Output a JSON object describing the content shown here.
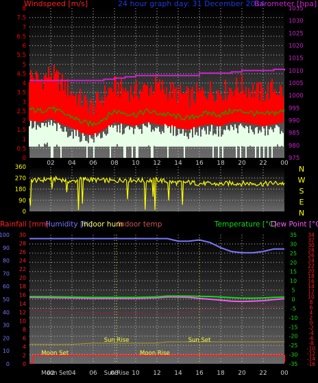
{
  "colors": {
    "background": "#000000",
    "grid": "#c8c8c8",
    "wind_avg": "#00b000",
    "wind_gust": "#ff0000",
    "wind_lull": "#ffffff",
    "barometer": "#cc22cc",
    "direction": "#ffff00",
    "rainfall": "#ff2222",
    "humidity": "#7777ff",
    "indoor_hum": "#ffff66",
    "indoor_temp": "#cc5555",
    "temperature": "#11dd11",
    "dew_point": "#ff55ff",
    "sun_moon": "#ffff44",
    "title": "#1e3cdc"
  },
  "x_ticks": [
    "02",
    "04",
    "06",
    "08",
    "10",
    "12",
    "14",
    "16",
    "18",
    "20",
    "22",
    "00"
  ],
  "chart_data": [
    {
      "type": "line",
      "title": "24 hour graph day: 31 December 2014",
      "y_left_label": "Windspeed [m/s]",
      "y_right_label": "Barometer [hpa]",
      "y_left_ticks": [
        "0",
        "0.5",
        "1",
        "1.5",
        "2",
        "2.5",
        "3",
        "3.5",
        "4",
        "4.5",
        "5",
        "5.5",
        "6",
        "6.5",
        "7",
        "7.5",
        "8"
      ],
      "y_right_ticks": [
        "975",
        "980",
        "985",
        "990",
        "995",
        "1000",
        "1005",
        "1010",
        "1015",
        "1020",
        "1025",
        "1030",
        "1035"
      ],
      "ylim_left": [
        0,
        8
      ],
      "ylim_right": [
        975,
        1035
      ],
      "x_hours": [
        0,
        1,
        2,
        3,
        4,
        5,
        6,
        7,
        8,
        9,
        10,
        11,
        12,
        13,
        14,
        15,
        16,
        17,
        18,
        19,
        20,
        21,
        22,
        23,
        24
      ],
      "series": [
        {
          "key": "gust",
          "values": [
            4.2,
            3.9,
            4.3,
            3.8,
            3.3,
            2.8,
            2.5,
            3.1,
            3.6,
            3.4,
            3.3,
            3.5,
            3.6,
            3.4,
            3.2,
            3.0,
            3.2,
            3.4,
            3.3,
            3.5,
            3.6,
            3.4,
            3.2,
            3.5,
            3.3
          ]
        },
        {
          "key": "average",
          "values": [
            2.6,
            2.5,
            2.7,
            2.4,
            2.2,
            1.9,
            1.8,
            2.1,
            2.5,
            2.4,
            2.3,
            2.5,
            2.4,
            2.3,
            2.2,
            2.1,
            2.3,
            2.4,
            2.3,
            2.5,
            2.5,
            2.4,
            2.3,
            2.4,
            2.5
          ]
        },
        {
          "key": "lull",
          "values": [
            1.8,
            1.6,
            1.8,
            1.5,
            1.3,
            1.1,
            1.0,
            1.3,
            1.6,
            1.5,
            1.5,
            1.6,
            1.6,
            1.5,
            1.4,
            1.3,
            1.4,
            1.5,
            1.4,
            1.6,
            1.6,
            1.5,
            1.4,
            1.5,
            1.6
          ]
        },
        {
          "key": "barometer",
          "values": [
            1006,
            1006,
            1006,
            1006,
            1006,
            1006,
            1006,
            1006.5,
            1007,
            1007.5,
            1008,
            1008,
            1008,
            1008,
            1008,
            1008,
            1009,
            1009,
            1009,
            1009.5,
            1010,
            1010,
            1010,
            1010.5,
            1010
          ]
        }
      ]
    },
    {
      "type": "scatter",
      "y_ticks": [
        "0",
        "90",
        "180",
        "270",
        "360"
      ],
      "compass": [
        "N",
        "W",
        "S",
        "E",
        "N"
      ],
      "ylim": [
        0,
        360
      ],
      "x_hours": [
        0,
        1,
        2,
        3,
        4,
        5,
        6,
        7,
        8,
        9,
        10,
        11,
        12,
        13,
        14,
        15,
        16,
        17,
        18,
        19,
        20,
        21,
        22,
        23,
        24
      ],
      "values": [
        255,
        250,
        265,
        258,
        240,
        262,
        255,
        250,
        245,
        258,
        252,
        248,
        255,
        240,
        230,
        235,
        225,
        222,
        220,
        228,
        226,
        225,
        222,
        228,
        226
      ]
    },
    {
      "type": "line",
      "legend": [
        "Rainfall [mm]",
        "Humidity [%]",
        "Indoor hum",
        "Indoor temp",
        "Temperature [°C]",
        "Dew Point [°C]"
      ],
      "y_humidity_ticks": [
        "0",
        "10",
        "20",
        "30",
        "40",
        "50",
        "60",
        "70",
        "80",
        "90",
        "100"
      ],
      "y_rain_ticks": [
        "0",
        "2",
        "4",
        "6",
        "8",
        "10",
        "12",
        "14",
        "16",
        "18",
        "20",
        "22",
        "24",
        "26",
        "28",
        "30"
      ],
      "y_temp_ticks": [
        "-35",
        "-30",
        "-25",
        "-20",
        "-15",
        "-10",
        "-5",
        "0",
        "5",
        "10",
        "15",
        "20",
        "25",
        "30",
        "35"
      ],
      "y_dew_ticks": [
        "-16",
        "-14",
        "-12",
        "-10",
        "-8",
        "-6",
        "-4",
        "-2",
        "0",
        "2",
        "4",
        "6",
        "8",
        "10",
        "12",
        "14",
        "16",
        "18",
        "20",
        "22",
        "24",
        "26",
        "28",
        "30",
        "32",
        "34"
      ],
      "ylim_humidity": [
        0,
        100
      ],
      "ylim_temp": [
        -35,
        35
      ],
      "x_hours": [
        0,
        2,
        4,
        6,
        8,
        10,
        12,
        13,
        14,
        15,
        16,
        17,
        18,
        19,
        20,
        21,
        22,
        23,
        24
      ],
      "series": [
        {
          "key": "humidity",
          "values": [
            97,
            97,
            97,
            97,
            97,
            97,
            97,
            97,
            95,
            95,
            96,
            94,
            90,
            87,
            86,
            86,
            87,
            89,
            89
          ]
        },
        {
          "key": "temperature",
          "values": [
            1.5,
            1.4,
            1.2,
            1.0,
            1.0,
            1.0,
            1.3,
            1.8,
            1.8,
            1.7,
            1.6,
            1.5,
            1.2,
            0.9,
            0.6,
            0.6,
            0.7,
            1.0,
            1.2
          ]
        },
        {
          "key": "dew_point",
          "values": [
            1.0,
            0.9,
            0.7,
            0.5,
            0.5,
            0.5,
            0.8,
            1.2,
            1.2,
            1.0,
            0.5,
            0.0,
            -0.5,
            -1.0,
            -1.2,
            -1.0,
            -0.8,
            -0.2,
            0.3
          ]
        },
        {
          "key": "indoor_temp",
          "values": [
            -6,
            -6.5,
            -7,
            -7.5,
            -7.5,
            -7.5,
            -8,
            -8,
            -7.5,
            -7,
            -6,
            -5.5,
            -5,
            -4.5,
            -4.5,
            -4.5,
            -4,
            -4,
            -4
          ]
        },
        {
          "key": "indoor_hum",
          "values": [
            15,
            15,
            15,
            16,
            16,
            16,
            16,
            17,
            17,
            17,
            17,
            17,
            17,
            17,
            17,
            17,
            17,
            17,
            17
          ]
        }
      ],
      "annotations": [
        {
          "text": "Moon Set",
          "hour": 2.4
        },
        {
          "text": "Sun Rise",
          "hour": 8.2
        },
        {
          "text": "Moon Rise",
          "hour": 11.8
        },
        {
          "text": "Sun Set",
          "hour": 16.0
        }
      ]
    }
  ],
  "bottom_x_labels": [
    "02",
    "04",
    "06",
    "08",
    "10",
    "12",
    "14",
    "16",
    "18",
    "20",
    "22",
    "00"
  ],
  "bottom_overlay_labels": [
    "Moon Set",
    "Sun Rise"
  ]
}
